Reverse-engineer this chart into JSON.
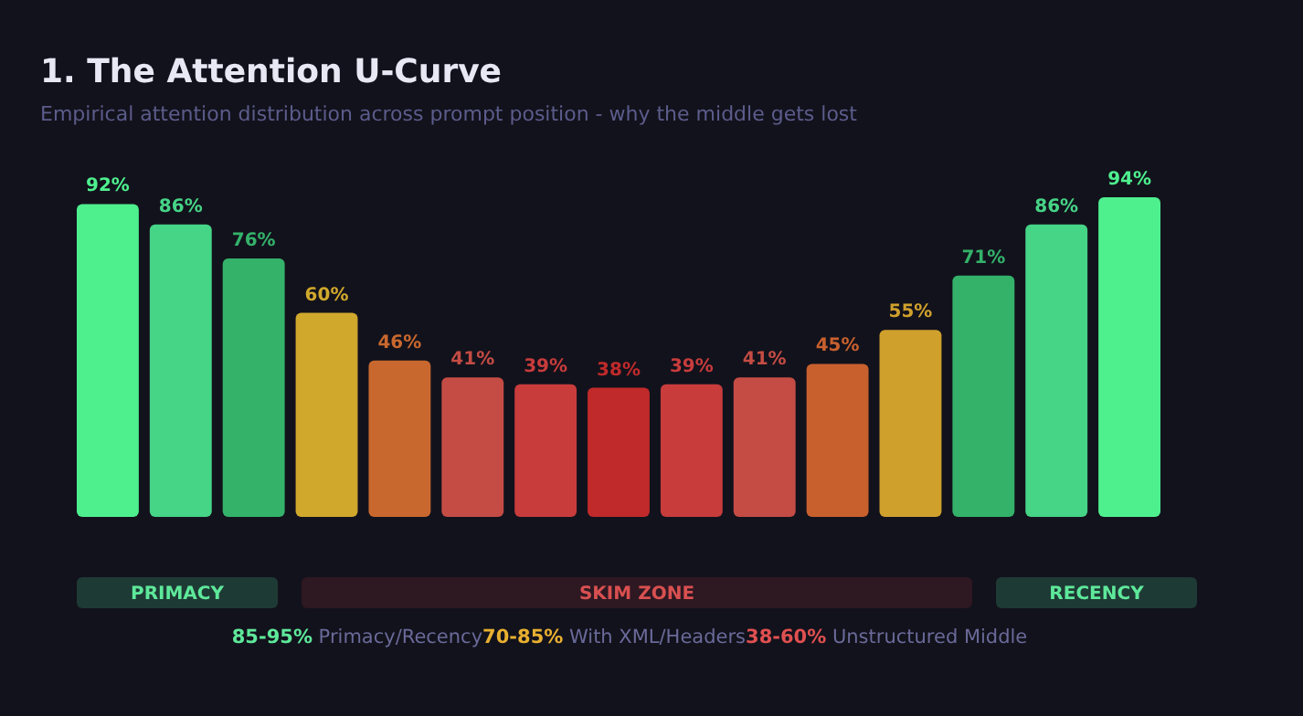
{
  "chart_data": {
    "type": "bar",
    "title": "1. The Attention U-Curve",
    "subtitle": "Empirical attention distribution across prompt position - why the middle gets lost",
    "categories": [
      null,
      null,
      null,
      null,
      null,
      null,
      null,
      null,
      null,
      null,
      null,
      null,
      null,
      null,
      null
    ],
    "values": [
      92,
      86,
      76,
      60,
      46,
      41,
      39,
      38,
      39,
      41,
      45,
      55,
      71,
      86,
      94
    ],
    "value_labels": [
      "92%",
      "86%",
      "76%",
      "60%",
      "46%",
      "41%",
      "39%",
      "38%",
      "39%",
      "41%",
      "45%",
      "55%",
      "71%",
      "86%",
      "94%"
    ],
    "colors": [
      "#4ef08e",
      "#46d487",
      "#34b26a",
      "#d0a82c",
      "#c8682e",
      "#c44c44",
      "#c83c3c",
      "#c02a2a",
      "#c83c3c",
      "#c44c44",
      "#c8602e",
      "#cfa02c",
      "#34b26a",
      "#46d487",
      "#4ef08e"
    ],
    "annotations": [
      "PRIMACY",
      "SKIM ZONE",
      "RECENCY",
      "85-95%",
      " Primacy/Recency",
      "70-85%",
      " With XML/Headers",
      "38-60%",
      " Unstructured Middle"
    ]
  }
}
